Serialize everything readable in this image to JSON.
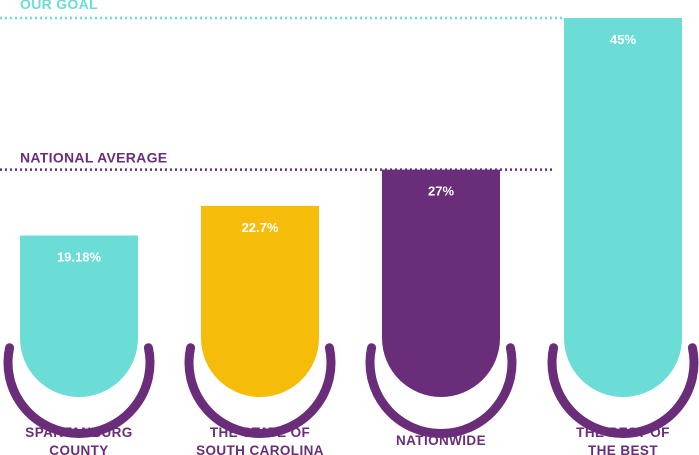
{
  "chart_data": {
    "type": "bar",
    "categories": [
      [
        "SPARTANBURG",
        "COUNTY"
      ],
      [
        "THE STATE OF",
        "SOUTH CAROLINA"
      ],
      [
        "NATIONWIDE"
      ],
      [
        "THE BEST OF",
        "THE BEST"
      ]
    ],
    "values": [
      19.18,
      22.7,
      27,
      45
    ],
    "value_labels": [
      "19.18%",
      "22.7%",
      "27%",
      "45%"
    ],
    "bar_colors": [
      "#6bdcd6",
      "#f5bc0a",
      "#6a2d7a",
      "#6bdcd6"
    ],
    "ring_color": "#6a2d7a",
    "reference_lines": [
      {
        "label": "OUR GOAL",
        "color": "#6bdcd6"
      },
      {
        "label": "NATIONAL AVERAGE",
        "value": 27,
        "color": "#6a2d7a"
      }
    ],
    "grid": false,
    "legend": "none"
  }
}
